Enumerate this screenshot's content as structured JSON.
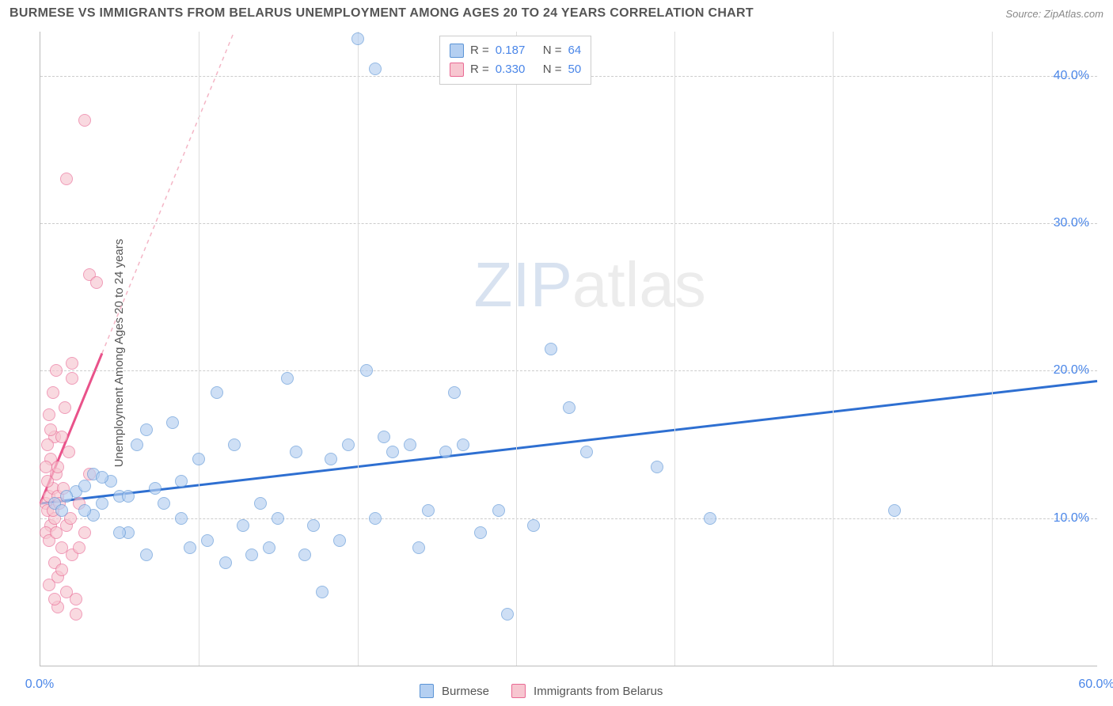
{
  "header": {
    "title": "BURMESE VS IMMIGRANTS FROM BELARUS UNEMPLOYMENT AMONG AGES 20 TO 24 YEARS CORRELATION CHART",
    "source_label": "Source:",
    "source_name": "ZipAtlas.com"
  },
  "chart": {
    "type": "scatter",
    "ylabel": "Unemployment Among Ages 20 to 24 years",
    "background_color": "#ffffff",
    "grid_color": "#cccccc",
    "axis_color": "#bbbbbb",
    "xlim": [
      0,
      60
    ],
    "ylim": [
      0,
      43
    ],
    "y_ticks": [
      {
        "value": 10,
        "label": "10.0%"
      },
      {
        "value": 20,
        "label": "20.0%"
      },
      {
        "value": 30,
        "label": "30.0%"
      },
      {
        "value": 40,
        "label": "40.0%"
      }
    ],
    "x_ticks": [
      {
        "value": 0,
        "label": "0.0%"
      },
      {
        "value": 60,
        "label": "60.0%"
      }
    ],
    "x_gridlines": [
      9,
      18,
      27,
      36,
      45,
      54
    ],
    "ytick_color": "#4a86e8",
    "xtick_color": "#4a86e8",
    "watermark": "ZIPatlas",
    "series": [
      {
        "name": "Burmese",
        "marker_fill": "#b4cff1",
        "marker_border": "#5b94d6",
        "line_color": "#2e6fd1",
        "line_dash_color": "#2e6fd1",
        "trendline": {
          "x1": 0,
          "y1": 11.0,
          "x2": 60,
          "y2": 19.3,
          "solid_until_x": 60
        },
        "points": [
          [
            0.8,
            11.0
          ],
          [
            1.2,
            10.5
          ],
          [
            2.0,
            11.8
          ],
          [
            2.5,
            12.2
          ],
          [
            3.0,
            10.2
          ],
          [
            3.5,
            11.0
          ],
          [
            4.0,
            12.5
          ],
          [
            4.5,
            11.5
          ],
          [
            5.0,
            9.0
          ],
          [
            5.5,
            15.0
          ],
          [
            6.0,
            7.5
          ],
          [
            6.5,
            12.0
          ],
          [
            7.0,
            11.0
          ],
          [
            7.5,
            16.5
          ],
          [
            8.0,
            12.5
          ],
          [
            8.5,
            8.0
          ],
          [
            9.0,
            14.0
          ],
          [
            9.5,
            8.5
          ],
          [
            10.0,
            18.5
          ],
          [
            3.0,
            13.0
          ],
          [
            10.5,
            7.0
          ],
          [
            11.0,
            15.0
          ],
          [
            11.5,
            9.5
          ],
          [
            12.0,
            7.5
          ],
          [
            12.5,
            11.0
          ],
          [
            13.0,
            8.0
          ],
          [
            13.5,
            10.0
          ],
          [
            14.0,
            19.5
          ],
          [
            14.5,
            14.5
          ],
          [
            15.0,
            7.5
          ],
          [
            15.5,
            9.5
          ],
          [
            16.0,
            5.0
          ],
          [
            16.5,
            14.0
          ],
          [
            17.0,
            8.5
          ],
          [
            17.5,
            15.0
          ],
          [
            18.0,
            42.5
          ],
          [
            18.5,
            20.0
          ],
          [
            19.0,
            10.0
          ],
          [
            19.5,
            15.5
          ],
          [
            19.0,
            40.5
          ],
          [
            20.0,
            14.5
          ],
          [
            21.0,
            15.0
          ],
          [
            21.5,
            8.0
          ],
          [
            22.0,
            10.5
          ],
          [
            23.0,
            14.5
          ],
          [
            23.5,
            18.5
          ],
          [
            24.0,
            15.0
          ],
          [
            25.0,
            9.0
          ],
          [
            26.0,
            10.5
          ],
          [
            26.5,
            3.5
          ],
          [
            28.0,
            9.5
          ],
          [
            29.0,
            21.5
          ],
          [
            30.0,
            17.5
          ],
          [
            31.0,
            14.5
          ],
          [
            35.0,
            13.5
          ],
          [
            38.0,
            10.0
          ],
          [
            48.5,
            10.5
          ],
          [
            4.5,
            9.0
          ],
          [
            6.0,
            16.0
          ],
          [
            8.0,
            10.0
          ],
          [
            1.5,
            11.5
          ],
          [
            2.5,
            10.5
          ],
          [
            3.5,
            12.8
          ],
          [
            5.0,
            11.5
          ]
        ]
      },
      {
        "name": "Immigrants from Belarus",
        "marker_fill": "#f7c6d0",
        "marker_border": "#e96994",
        "line_color": "#e9528a",
        "line_dash_color": "#f4b6c6",
        "trendline": {
          "x1": 0,
          "y1": 11.0,
          "x2": 11,
          "y2": 43,
          "solid_until_x": 3.5
        },
        "points": [
          [
            0.3,
            11.0
          ],
          [
            0.4,
            10.5
          ],
          [
            0.5,
            11.5
          ],
          [
            0.6,
            9.5
          ],
          [
            0.7,
            12.0
          ],
          [
            0.8,
            10.0
          ],
          [
            0.9,
            13.0
          ],
          [
            1.0,
            11.5
          ],
          [
            0.3,
            9.0
          ],
          [
            0.4,
            12.5
          ],
          [
            0.5,
            8.5
          ],
          [
            0.6,
            14.0
          ],
          [
            0.7,
            10.5
          ],
          [
            0.8,
            15.5
          ],
          [
            0.9,
            9.0
          ],
          [
            1.0,
            13.5
          ],
          [
            1.1,
            11.0
          ],
          [
            1.2,
            8.0
          ],
          [
            1.3,
            12.0
          ],
          [
            1.4,
            17.5
          ],
          [
            1.5,
            9.5
          ],
          [
            1.6,
            14.5
          ],
          [
            1.7,
            10.0
          ],
          [
            1.8,
            19.5
          ],
          [
            0.8,
            7.0
          ],
          [
            1.0,
            6.0
          ],
          [
            1.2,
            6.5
          ],
          [
            1.5,
            5.0
          ],
          [
            1.8,
            7.5
          ],
          [
            2.0,
            4.5
          ],
          [
            2.2,
            8.0
          ],
          [
            0.5,
            17.0
          ],
          [
            0.7,
            18.5
          ],
          [
            0.9,
            20.0
          ],
          [
            1.8,
            20.5
          ],
          [
            2.0,
            3.5
          ],
          [
            2.2,
            11.0
          ],
          [
            2.5,
            9.0
          ],
          [
            2.8,
            13.0
          ],
          [
            0.4,
            15.0
          ],
          [
            0.6,
            16.0
          ],
          [
            0.3,
            13.5
          ],
          [
            1.0,
            4.0
          ],
          [
            0.5,
            5.5
          ],
          [
            0.8,
            4.5
          ],
          [
            2.5,
            37.0
          ],
          [
            1.5,
            33.0
          ],
          [
            2.8,
            26.5
          ],
          [
            3.2,
            26.0
          ],
          [
            1.2,
            15.5
          ]
        ]
      }
    ],
    "legend_top": {
      "r_label": "R =",
      "n_label": "N =",
      "r_color": "#4a86e8",
      "n_color": "#4a86e8",
      "text_color": "#555555",
      "rows": [
        {
          "swatch_fill": "#b4cff1",
          "swatch_border": "#5b94d6",
          "r": "0.187",
          "n": "64"
        },
        {
          "swatch_fill": "#f7c6d0",
          "swatch_border": "#e96994",
          "r": "0.330",
          "n": "50"
        }
      ]
    },
    "legend_bottom": [
      {
        "swatch_fill": "#b4cff1",
        "swatch_border": "#5b94d6",
        "label": "Burmese"
      },
      {
        "swatch_fill": "#f7c6d0",
        "swatch_border": "#e96994",
        "label": "Immigrants from Belarus"
      }
    ]
  }
}
